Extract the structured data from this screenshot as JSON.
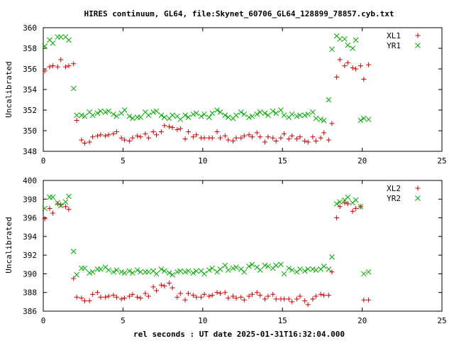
{
  "window": {
    "title": "HIRES continuum, GL64, file:Skynet_60706_GL64_128899_78857.cyb.txt"
  },
  "chart_data": [
    {
      "type": "scatter",
      "title": "HIRES continuum, GL64, file:Skynet_60706_GL64_128899_78857.cyb.txt",
      "xlabel": "",
      "ylabel": "Uncalibrated",
      "xlim": [
        0,
        25
      ],
      "ylim": [
        348,
        360
      ],
      "xticks": [
        0,
        5,
        10,
        15,
        20,
        25
      ],
      "yticks": [
        348,
        350,
        352,
        354,
        356,
        358,
        360
      ],
      "legend": "top-right",
      "grid": false,
      "series": [
        {
          "name": "XL1",
          "marker": "plus",
          "color": "#cc0000",
          "x": [
            0.1,
            0.4,
            0.6,
            0.9,
            1.1,
            1.4,
            1.6,
            1.9,
            2.1,
            2.4,
            2.6,
            2.9,
            3.1,
            3.4,
            3.6,
            3.9,
            4.1,
            4.4,
            4.6,
            4.9,
            5.1,
            5.4,
            5.6,
            5.9,
            6.1,
            6.4,
            6.6,
            6.9,
            7.1,
            7.4,
            7.6,
            7.9,
            8.1,
            8.4,
            8.6,
            8.9,
            9.1,
            9.4,
            9.6,
            9.9,
            10.1,
            10.4,
            10.6,
            10.9,
            11.1,
            11.4,
            11.6,
            11.9,
            12.1,
            12.4,
            12.6,
            12.9,
            13.1,
            13.4,
            13.6,
            13.9,
            14.1,
            14.4,
            14.6,
            14.9,
            15.1,
            15.4,
            15.6,
            15.9,
            16.1,
            16.4,
            16.6,
            16.9,
            17.1,
            17.4,
            17.6,
            17.9,
            18.1,
            18.4,
            18.6,
            18.9,
            19.1,
            19.4,
            19.6,
            19.9,
            20.1,
            20.4
          ],
          "y": [
            355.8,
            356.2,
            356.3,
            356.2,
            356.9,
            356.2,
            356.3,
            356.5,
            351.0,
            349.1,
            348.8,
            348.9,
            349.4,
            349.5,
            349.6,
            349.5,
            349.6,
            349.7,
            349.9,
            349.3,
            349.1,
            349.0,
            349.3,
            349.5,
            349.4,
            349.7,
            349.3,
            349.9,
            349.6,
            349.9,
            350.5,
            350.4,
            350.3,
            350.1,
            350.2,
            349.2,
            349.9,
            349.4,
            349.6,
            349.3,
            349.3,
            349.3,
            349.3,
            349.9,
            349.3,
            349.5,
            349.1,
            349.0,
            349.3,
            349.3,
            349.5,
            349.6,
            349.4,
            349.8,
            349.4,
            348.9,
            349.4,
            349.3,
            349.0,
            349.3,
            349.7,
            349.2,
            349.5,
            349.2,
            349.4,
            349.0,
            348.9,
            349.4,
            349.0,
            349.3,
            349.8,
            349.1,
            350.7,
            355.2,
            356.9,
            356.3,
            356.6,
            356.1,
            356.0,
            356.3,
            355.0,
            356.4
          ]
        },
        {
          "name": "YR1",
          "marker": "cross",
          "color": "#00aa00",
          "x": [
            0.1,
            0.4,
            0.6,
            0.9,
            1.1,
            1.4,
            1.6,
            1.9,
            2.1,
            2.4,
            2.6,
            2.9,
            3.1,
            3.4,
            3.6,
            3.9,
            4.1,
            4.4,
            4.6,
            4.9,
            5.1,
            5.4,
            5.6,
            5.9,
            6.1,
            6.4,
            6.6,
            6.9,
            7.1,
            7.4,
            7.6,
            7.9,
            8.1,
            8.4,
            8.6,
            8.9,
            9.1,
            9.4,
            9.6,
            9.9,
            10.1,
            10.4,
            10.6,
            10.9,
            11.1,
            11.4,
            11.6,
            11.9,
            12.1,
            12.4,
            12.6,
            12.9,
            13.1,
            13.4,
            13.6,
            13.9,
            14.1,
            14.4,
            14.6,
            14.9,
            15.1,
            15.4,
            15.6,
            15.9,
            16.1,
            16.4,
            16.6,
            16.9,
            17.1,
            17.4,
            17.6,
            17.9,
            18.1,
            18.4,
            18.6,
            18.9,
            19.1,
            19.4,
            19.6,
            19.9,
            20.1,
            20.4
          ],
          "y": [
            358.2,
            358.8,
            358.5,
            359.1,
            359.1,
            359.1,
            358.8,
            354.1,
            351.5,
            351.5,
            351.4,
            351.8,
            351.5,
            351.7,
            351.9,
            351.8,
            351.9,
            351.6,
            351.4,
            351.7,
            352.0,
            351.4,
            351.2,
            351.3,
            351.3,
            351.8,
            351.5,
            351.8,
            351.9,
            351.5,
            351.3,
            351.2,
            351.5,
            351.4,
            351.1,
            351.5,
            351.3,
            351.6,
            351.7,
            351.4,
            351.6,
            351.3,
            351.7,
            352.0,
            351.8,
            351.5,
            351.3,
            351.2,
            351.5,
            351.8,
            351.6,
            351.3,
            351.4,
            351.6,
            351.8,
            351.7,
            351.5,
            351.9,
            351.7,
            352.0,
            351.5,
            351.3,
            351.6,
            351.4,
            351.5,
            351.5,
            351.6,
            351.8,
            351.2,
            351.1,
            351.0,
            353.0,
            357.9,
            359.2,
            358.9,
            358.9,
            358.3,
            358.0,
            358.8,
            351.0,
            351.2,
            351.1
          ]
        }
      ]
    },
    {
      "type": "scatter",
      "title": "",
      "xlabel": "rel seconds : UT date 2025-01-31T16:32:04.000",
      "ylabel": "Uncalibrated",
      "xlim": [
        0,
        25
      ],
      "ylim": [
        386,
        400
      ],
      "xticks": [
        0,
        5,
        10,
        15,
        20,
        25
      ],
      "yticks": [
        386,
        388,
        390,
        392,
        394,
        396,
        398,
        400
      ],
      "legend": "top-right",
      "grid": false,
      "series": [
        {
          "name": "XL2",
          "marker": "plus",
          "color": "#cc0000",
          "x": [
            0.1,
            0.4,
            0.6,
            0.9,
            1.1,
            1.4,
            1.6,
            1.9,
            2.1,
            2.4,
            2.6,
            2.9,
            3.1,
            3.4,
            3.6,
            3.9,
            4.1,
            4.4,
            4.6,
            4.9,
            5.1,
            5.4,
            5.6,
            5.9,
            6.1,
            6.4,
            6.6,
            6.9,
            7.1,
            7.4,
            7.6,
            7.9,
            8.1,
            8.4,
            8.6,
            8.9,
            9.1,
            9.4,
            9.6,
            9.9,
            10.1,
            10.4,
            10.6,
            10.9,
            11.1,
            11.4,
            11.6,
            11.9,
            12.1,
            12.4,
            12.6,
            12.9,
            13.1,
            13.4,
            13.6,
            13.9,
            14.1,
            14.4,
            14.6,
            14.9,
            15.1,
            15.4,
            15.6,
            15.9,
            16.1,
            16.4,
            16.6,
            16.9,
            17.1,
            17.4,
            17.6,
            17.9,
            18.1,
            18.4,
            18.6,
            18.9,
            19.1,
            19.4,
            19.6,
            19.9,
            20.1,
            20.4
          ],
          "y": [
            395.9,
            397.0,
            396.5,
            397.5,
            397.4,
            397.2,
            396.9,
            389.5,
            387.5,
            387.4,
            387.1,
            387.1,
            387.8,
            388.0,
            387.5,
            387.5,
            387.6,
            387.7,
            387.5,
            387.3,
            387.4,
            387.6,
            387.8,
            387.5,
            387.4,
            387.9,
            387.6,
            388.6,
            388.2,
            388.8,
            388.7,
            389.0,
            388.5,
            387.5,
            387.9,
            387.2,
            387.9,
            387.7,
            387.5,
            387.5,
            387.8,
            387.6,
            387.7,
            388.0,
            387.9,
            388.0,
            387.4,
            387.6,
            387.4,
            387.5,
            387.2,
            387.6,
            387.8,
            388.0,
            387.7,
            387.3,
            387.6,
            387.8,
            387.3,
            387.3,
            387.3,
            387.3,
            387.0,
            387.3,
            387.6,
            387.1,
            386.7,
            387.3,
            387.6,
            387.8,
            387.7,
            387.7,
            390.2,
            396.0,
            397.2,
            397.6,
            397.5,
            396.7,
            397.0,
            397.2,
            387.2,
            387.2
          ]
        },
        {
          "name": "YR2",
          "marker": "cross",
          "color": "#00aa00",
          "x": [
            0.1,
            0.4,
            0.6,
            0.9,
            1.1,
            1.4,
            1.6,
            1.9,
            2.1,
            2.4,
            2.6,
            2.9,
            3.1,
            3.4,
            3.6,
            3.9,
            4.1,
            4.4,
            4.6,
            4.9,
            5.1,
            5.4,
            5.6,
            5.9,
            6.1,
            6.4,
            6.6,
            6.9,
            7.1,
            7.4,
            7.6,
            7.9,
            8.1,
            8.4,
            8.6,
            8.9,
            9.1,
            9.4,
            9.6,
            9.9,
            10.1,
            10.4,
            10.6,
            10.9,
            11.1,
            11.4,
            11.6,
            11.9,
            12.1,
            12.4,
            12.6,
            12.9,
            13.1,
            13.4,
            13.6,
            13.9,
            14.1,
            14.4,
            14.6,
            14.9,
            15.1,
            15.4,
            15.6,
            15.9,
            16.1,
            16.4,
            16.6,
            16.9,
            17.1,
            17.4,
            17.6,
            17.9,
            18.1,
            18.4,
            18.6,
            18.9,
            19.1,
            19.4,
            19.6,
            19.9,
            20.1,
            20.4
          ],
          "y": [
            397.0,
            398.2,
            398.2,
            397.6,
            397.3,
            397.7,
            398.3,
            392.4,
            389.9,
            390.6,
            390.6,
            390.1,
            390.2,
            390.5,
            390.5,
            390.7,
            390.4,
            390.2,
            390.4,
            390.2,
            390.1,
            390.3,
            390.1,
            390.4,
            390.2,
            390.2,
            390.2,
            390.3,
            390.0,
            390.5,
            390.3,
            390.1,
            389.9,
            390.2,
            390.3,
            390.2,
            390.3,
            390.1,
            390.3,
            390.3,
            390.0,
            390.4,
            390.6,
            390.2,
            390.5,
            390.9,
            390.4,
            390.6,
            390.7,
            390.5,
            390.2,
            390.8,
            391.0,
            390.7,
            390.4,
            390.9,
            390.8,
            390.6,
            390.9,
            391.0,
            390.0,
            390.6,
            390.4,
            390.2,
            390.5,
            390.3,
            390.5,
            390.5,
            390.4,
            390.5,
            390.8,
            390.5,
            391.8,
            397.5,
            397.7,
            397.9,
            398.2,
            397.6,
            397.9,
            397.2,
            390.0,
            390.2
          ]
        }
      ]
    }
  ]
}
